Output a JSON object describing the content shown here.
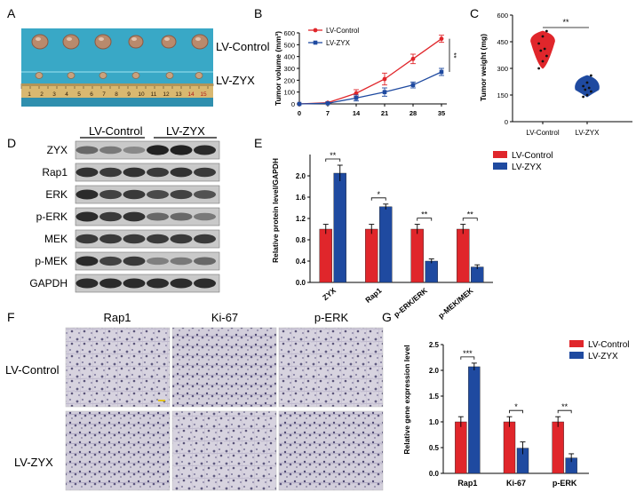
{
  "panels": {
    "a": "A",
    "b": "B",
    "c": "C",
    "d": "D",
    "e": "E",
    "f": "F",
    "g": "G"
  },
  "colors": {
    "control": "#e0262b",
    "zyx": "#1f4aa0",
    "table_cloth": "#39a8c6",
    "tissue": "#d9d3dc"
  },
  "photo": {
    "row1_label": "LV-Control",
    "row2_label": "LV-ZYX",
    "ruler_numbers": [
      "1",
      "2",
      "3",
      "4",
      "5",
      "6",
      "7",
      "8",
      "9",
      "10",
      "11",
      "12",
      "13",
      "14",
      "15"
    ]
  },
  "western": {
    "group_labels": [
      "LV-Control",
      "LV-ZYX"
    ],
    "bands": [
      "ZYX",
      "Rap1",
      "ERK",
      "p-ERK",
      "MEK",
      "p-MEK",
      "GAPDH"
    ]
  },
  "ihc": {
    "columns": [
      "Rap1",
      "Ki-67",
      "p-ERK"
    ],
    "rows": [
      "LV-Control",
      "LV-ZYX"
    ]
  },
  "chart_data": [
    {
      "panel": "B",
      "type": "line",
      "x": [
        0,
        7,
        14,
        21,
        28,
        35
      ],
      "xticks": [
        "0",
        "7",
        "14",
        "21",
        "28",
        "35"
      ],
      "yticks": [
        "0",
        "100",
        "200",
        "300",
        "400",
        "500",
        "600"
      ],
      "ylabel": "Tumor volume (mm³)",
      "xlabel": "",
      "ylim": [
        0,
        600
      ],
      "series": [
        {
          "name": "LV-Control",
          "values": [
            0,
            10,
            90,
            210,
            380,
            550
          ],
          "errors": [
            0,
            6,
            30,
            50,
            40,
            30
          ]
        },
        {
          "name": "LV-ZYX",
          "values": [
            0,
            5,
            50,
            100,
            160,
            270
          ],
          "errors": [
            0,
            4,
            25,
            35,
            25,
            30
          ]
        }
      ],
      "annotations": [
        "**"
      ],
      "legend": "top-left"
    },
    {
      "panel": "C",
      "type": "violin",
      "categories": [
        "LV-Control",
        "LV-ZYX"
      ],
      "yticks": [
        "0",
        "150",
        "300",
        "450",
        "600"
      ],
      "ylabel": "Tumor weight (mg)",
      "ylim": [
        0,
        600
      ],
      "series": [
        {
          "name": "LV-Control",
          "points": [
            300,
            340,
            370,
            400,
            410,
            440,
            480,
            510
          ]
        },
        {
          "name": "LV-ZYX",
          "points": [
            140,
            150,
            170,
            180,
            190,
            200,
            220,
            260
          ]
        }
      ],
      "annotations": [
        "**"
      ]
    },
    {
      "panel": "E",
      "type": "bar",
      "categories": [
        "ZYX",
        "Rap1",
        "p-ERK/ERK",
        "p-MEK/MEK"
      ],
      "yticks": [
        "0.0",
        "0.4",
        "0.8",
        "1.2",
        "1.6",
        "2.0"
      ],
      "ylabel": "Relative protein level/GAPDH",
      "ylim": [
        0,
        2.4
      ],
      "series": [
        {
          "name": "LV-Control",
          "values": [
            1.0,
            1.0,
            1.0,
            1.0
          ],
          "errors": [
            0.09,
            0.09,
            0.09,
            0.09
          ]
        },
        {
          "name": "LV-ZYX",
          "values": [
            2.05,
            1.42,
            0.4,
            0.29
          ],
          "errors": [
            0.15,
            0.05,
            0.04,
            0.04
          ]
        }
      ],
      "significance": [
        "**",
        "*",
        "**",
        "**"
      ],
      "legend": "top-right"
    },
    {
      "panel": "G",
      "type": "bar",
      "categories": [
        "Rap1",
        "Ki-67",
        "p-ERK"
      ],
      "yticks": [
        "0.0",
        "0.5",
        "1.0",
        "1.5",
        "2.0",
        "2.5"
      ],
      "ylabel": "Relative gene expression level",
      "ylim": [
        0,
        2.5
      ],
      "series": [
        {
          "name": "LV-Control",
          "values": [
            1.0,
            1.0,
            1.0
          ],
          "errors": [
            0.1,
            0.1,
            0.1
          ]
        },
        {
          "name": "LV-ZYX",
          "values": [
            2.07,
            0.49,
            0.3
          ],
          "errors": [
            0.07,
            0.12,
            0.08
          ]
        }
      ],
      "significance": [
        "***",
        "*",
        "**"
      ],
      "legend": "top-right"
    }
  ]
}
